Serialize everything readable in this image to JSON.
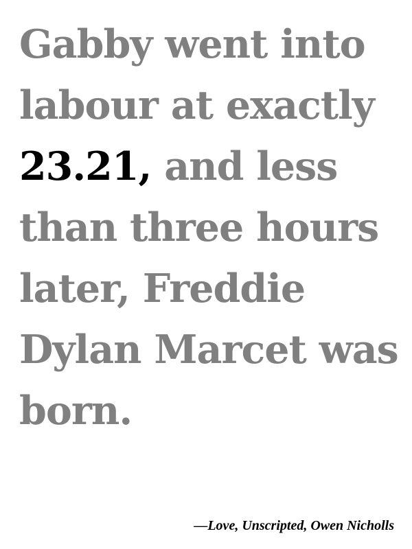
{
  "quote": {
    "before": "Gabby went into labour at exactly ",
    "highlight": "23.21,",
    "after": " and less than three hours later, Freddie Dylan Marcet was born."
  },
  "attribution": {
    "text": "—Love, Unscripted, Owen Nicholls"
  },
  "colors": {
    "quote_text": "#808080",
    "highlight": "#000000",
    "attribution": "#000000",
    "background": "#ffffff"
  }
}
